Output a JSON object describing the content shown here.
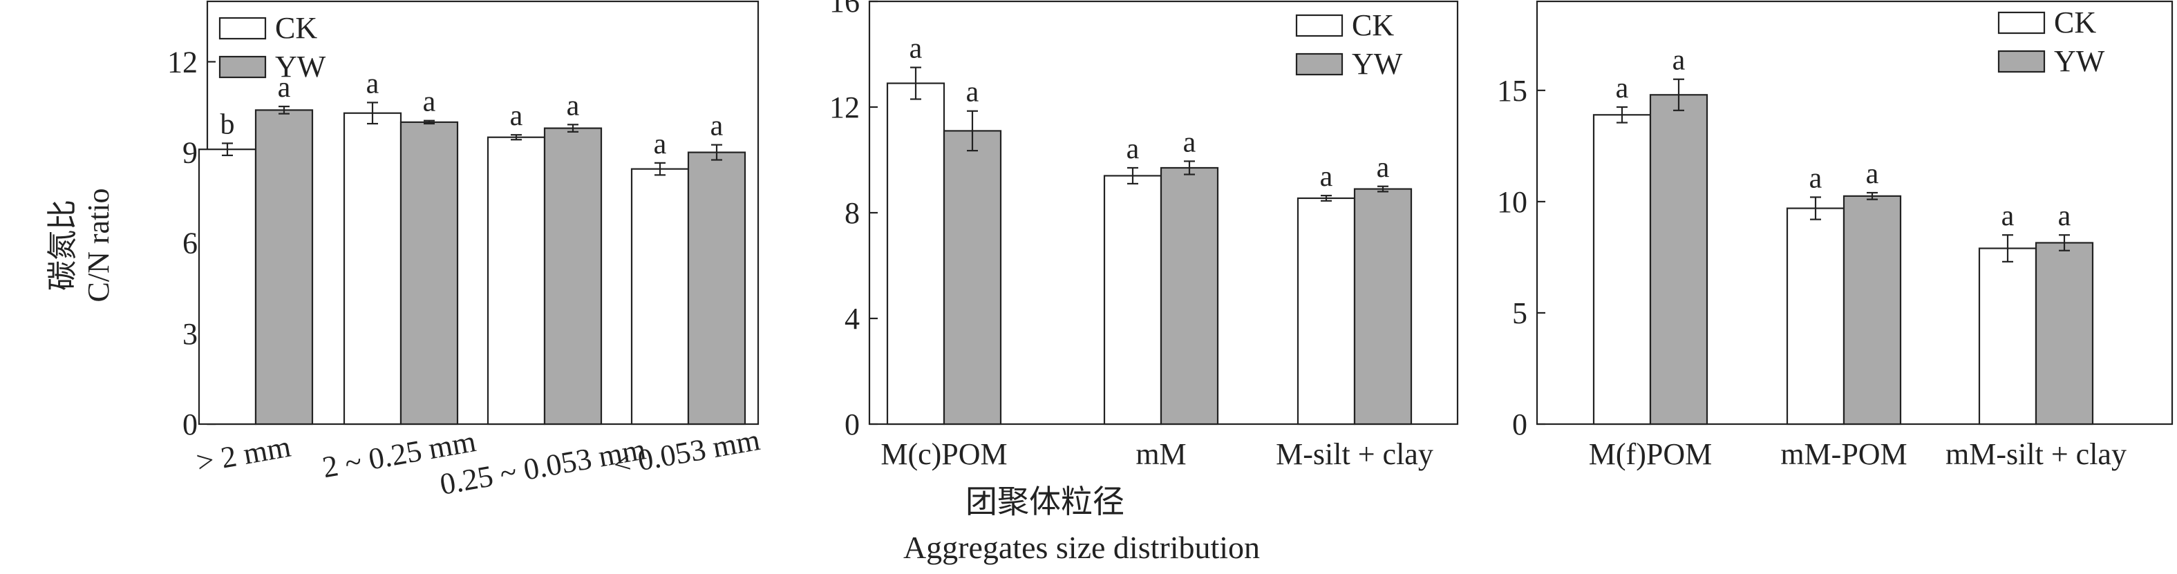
{
  "colors": {
    "CK": "#ffffff",
    "YW": "#aaaaaa",
    "stroke": "#222222"
  },
  "y_title": {
    "line1": "碳氮比",
    "line2": "C/N ratio"
  },
  "x_title": {
    "line1": "团聚体粒径",
    "line2": "Aggregates size distribution"
  },
  "chart_data": [
    {
      "type": "bar",
      "categories": [
        "> 2 mm",
        "2 ~ 0.25 mm",
        "0.25 ~ 0.053 mm",
        "< 0.053 mm"
      ],
      "series": [
        {
          "name": "CK",
          "values": [
            9.1,
            10.3,
            9.5,
            8.45
          ],
          "errors": [
            0.2,
            0.35,
            0.08,
            0.2
          ],
          "letters": [
            "b",
            "a",
            "a",
            "a"
          ]
        },
        {
          "name": "YW",
          "values": [
            10.4,
            10.0,
            9.8,
            9.0
          ],
          "errors": [
            0.12,
            0.05,
            0.12,
            0.25
          ],
          "letters": [
            "a",
            "a",
            "a",
            "a"
          ]
        }
      ],
      "ylim": [
        0,
        14
      ],
      "yticks": [
        0,
        3,
        6,
        9,
        12
      ],
      "legend": "top-left"
    },
    {
      "type": "bar",
      "categories": [
        "M(c)POM",
        "mM",
        "M-silt + clay"
      ],
      "series": [
        {
          "name": "CK",
          "values": [
            12.9,
            9.4,
            8.55
          ],
          "errors": [
            0.6,
            0.3,
            0.1
          ],
          "letters": [
            "a",
            "a",
            "a"
          ]
        },
        {
          "name": "YW",
          "values": [
            11.1,
            9.7,
            8.9
          ],
          "errors": [
            0.75,
            0.25,
            0.1
          ],
          "letters": [
            "a",
            "a",
            "a"
          ]
        }
      ],
      "ylim": [
        0,
        16
      ],
      "yticks": [
        0,
        4,
        8,
        12,
        16
      ],
      "legend": "top-right"
    },
    {
      "type": "bar",
      "categories": [
        "M(f)POM",
        "mM-POM",
        "mM-silt + clay"
      ],
      "series": [
        {
          "name": "CK",
          "values": [
            13.9,
            9.7,
            7.9
          ],
          "errors": [
            0.35,
            0.5,
            0.6
          ],
          "letters": [
            "a",
            "a",
            "a"
          ]
        },
        {
          "name": "YW",
          "values": [
            14.8,
            10.25,
            8.15
          ],
          "errors": [
            0.7,
            0.15,
            0.35
          ],
          "letters": [
            "a",
            "a",
            "a"
          ]
        }
      ],
      "ylim": [
        0,
        19
      ],
      "yticks": [
        0,
        5,
        10,
        15
      ],
      "legend": "top-right"
    }
  ]
}
